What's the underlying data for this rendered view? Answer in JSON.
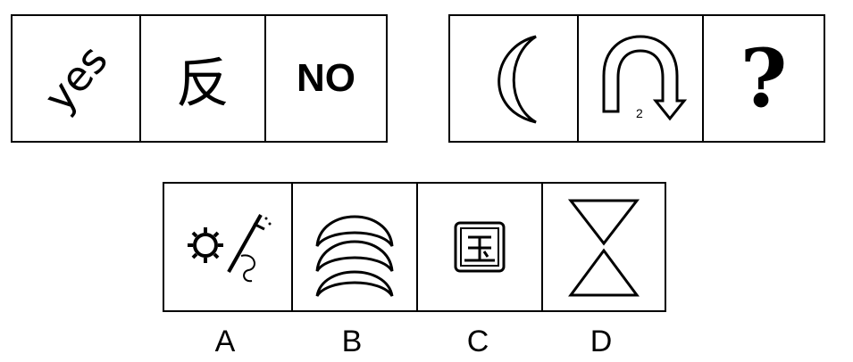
{
  "puzzle": {
    "row1": {
      "cells": [
        "yes",
        "反",
        "NO"
      ]
    },
    "row2": {
      "arc_number": "2",
      "question_mark": "?"
    },
    "options": {
      "labels": [
        "A",
        "B",
        "C",
        "D"
      ]
    }
  }
}
